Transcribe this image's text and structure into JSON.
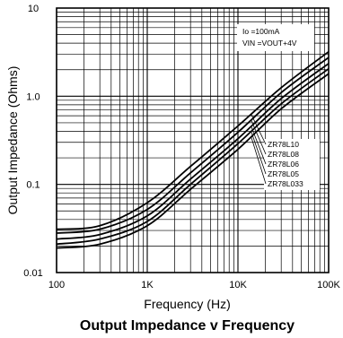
{
  "chart_data": {
    "type": "line",
    "title": "Output Impedance v Frequency",
    "xlabel": "Frequency (Hz)",
    "ylabel": "Output Impedance (Ohms)",
    "x_scale": "log",
    "y_scale": "log",
    "xlim": [
      100,
      100000
    ],
    "ylim": [
      0.01,
      10
    ],
    "grid": true,
    "x_ticks": [
      {
        "value": 100,
        "label": "100"
      },
      {
        "value": 1000,
        "label": "1K"
      },
      {
        "value": 10000,
        "label": "10K"
      },
      {
        "value": 100000,
        "label": "100K"
      }
    ],
    "y_ticks": [
      {
        "value": 0.01,
        "label": "0.01"
      },
      {
        "value": 0.1,
        "label": "0.1"
      },
      {
        "value": 1,
        "label": "1.0"
      },
      {
        "value": 10,
        "label": "10"
      }
    ],
    "annotation_lines": [
      "Io =100mA",
      "VIN =VOUT+4V"
    ],
    "series": [
      {
        "name": "ZR78L10",
        "x": [
          100,
          300,
          1000,
          3000,
          10000,
          30000,
          100000
        ],
        "y": [
          0.031,
          0.034,
          0.062,
          0.16,
          0.46,
          1.25,
          3.2
        ]
      },
      {
        "name": "ZR78L08",
        "x": [
          100,
          300,
          1000,
          3000,
          10000,
          30000,
          100000
        ],
        "y": [
          0.028,
          0.031,
          0.052,
          0.135,
          0.39,
          1.1,
          2.75
        ]
      },
      {
        "name": "ZR78L06",
        "x": [
          100,
          300,
          1000,
          3000,
          10000,
          30000,
          100000
        ],
        "y": [
          0.024,
          0.027,
          0.044,
          0.115,
          0.33,
          0.94,
          2.35
        ]
      },
      {
        "name": "ZR78L05",
        "x": [
          100,
          300,
          1000,
          3000,
          10000,
          30000,
          100000
        ],
        "y": [
          0.021,
          0.024,
          0.038,
          0.1,
          0.29,
          0.82,
          2.05
        ]
      },
      {
        "name": "ZR78L033",
        "x": [
          100,
          300,
          1000,
          3000,
          10000,
          30000,
          100000
        ],
        "y": [
          0.019,
          0.021,
          0.034,
          0.088,
          0.25,
          0.72,
          1.8
        ]
      }
    ]
  }
}
